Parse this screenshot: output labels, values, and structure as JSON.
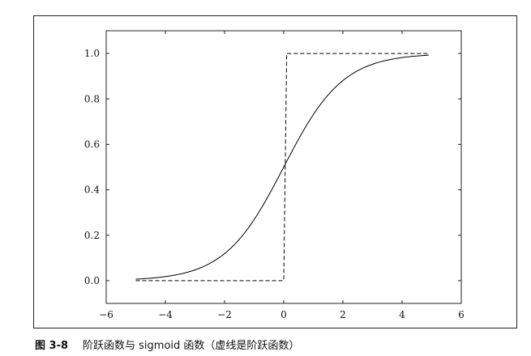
{
  "caption": {
    "figure_number": "图 3-8",
    "text": "阶跃函数与 sigmoid 函数（虚线是阶跃函数）"
  },
  "chart_data": {
    "type": "line",
    "title": "",
    "xlabel": "",
    "ylabel": "",
    "xlim": [
      -6,
      6
    ],
    "ylim": [
      -0.1,
      1.1
    ],
    "x_ticks": [
      -6,
      -4,
      -2,
      0,
      2,
      4,
      6
    ],
    "x_tick_labels": [
      "−6",
      "−4",
      "−2",
      "0",
      "2",
      "4",
      "6"
    ],
    "y_ticks": [
      0.0,
      0.2,
      0.4,
      0.6,
      0.8,
      1.0
    ],
    "y_tick_labels": [
      "0.0",
      "0.2",
      "0.4",
      "0.6",
      "0.8",
      "1.0"
    ],
    "grid": false,
    "legend": "none",
    "series": [
      {
        "style": "solid",
        "color": "#000000",
        "x": [
          -5.0,
          -4.5,
          -4.0,
          -3.5,
          -3.0,
          -2.5,
          -2.0,
          -1.5,
          -1.0,
          -0.5,
          0.0,
          0.5,
          1.0,
          1.5,
          2.0,
          2.5,
          3.0,
          3.5,
          4.0,
          4.5,
          4.9
        ],
        "y": [
          0.007,
          0.011,
          0.018,
          0.029,
          0.047,
          0.076,
          0.119,
          0.182,
          0.269,
          0.378,
          0.5,
          0.622,
          0.731,
          0.818,
          0.881,
          0.924,
          0.953,
          0.971,
          0.982,
          0.989,
          0.993
        ]
      },
      {
        "style": "dashed",
        "color": "#000000",
        "x": [
          -5.0,
          0.0,
          0.0,
          0.1,
          4.9
        ],
        "y": [
          0.0,
          0.0,
          0.0,
          1.0,
          1.0
        ]
      }
    ]
  }
}
